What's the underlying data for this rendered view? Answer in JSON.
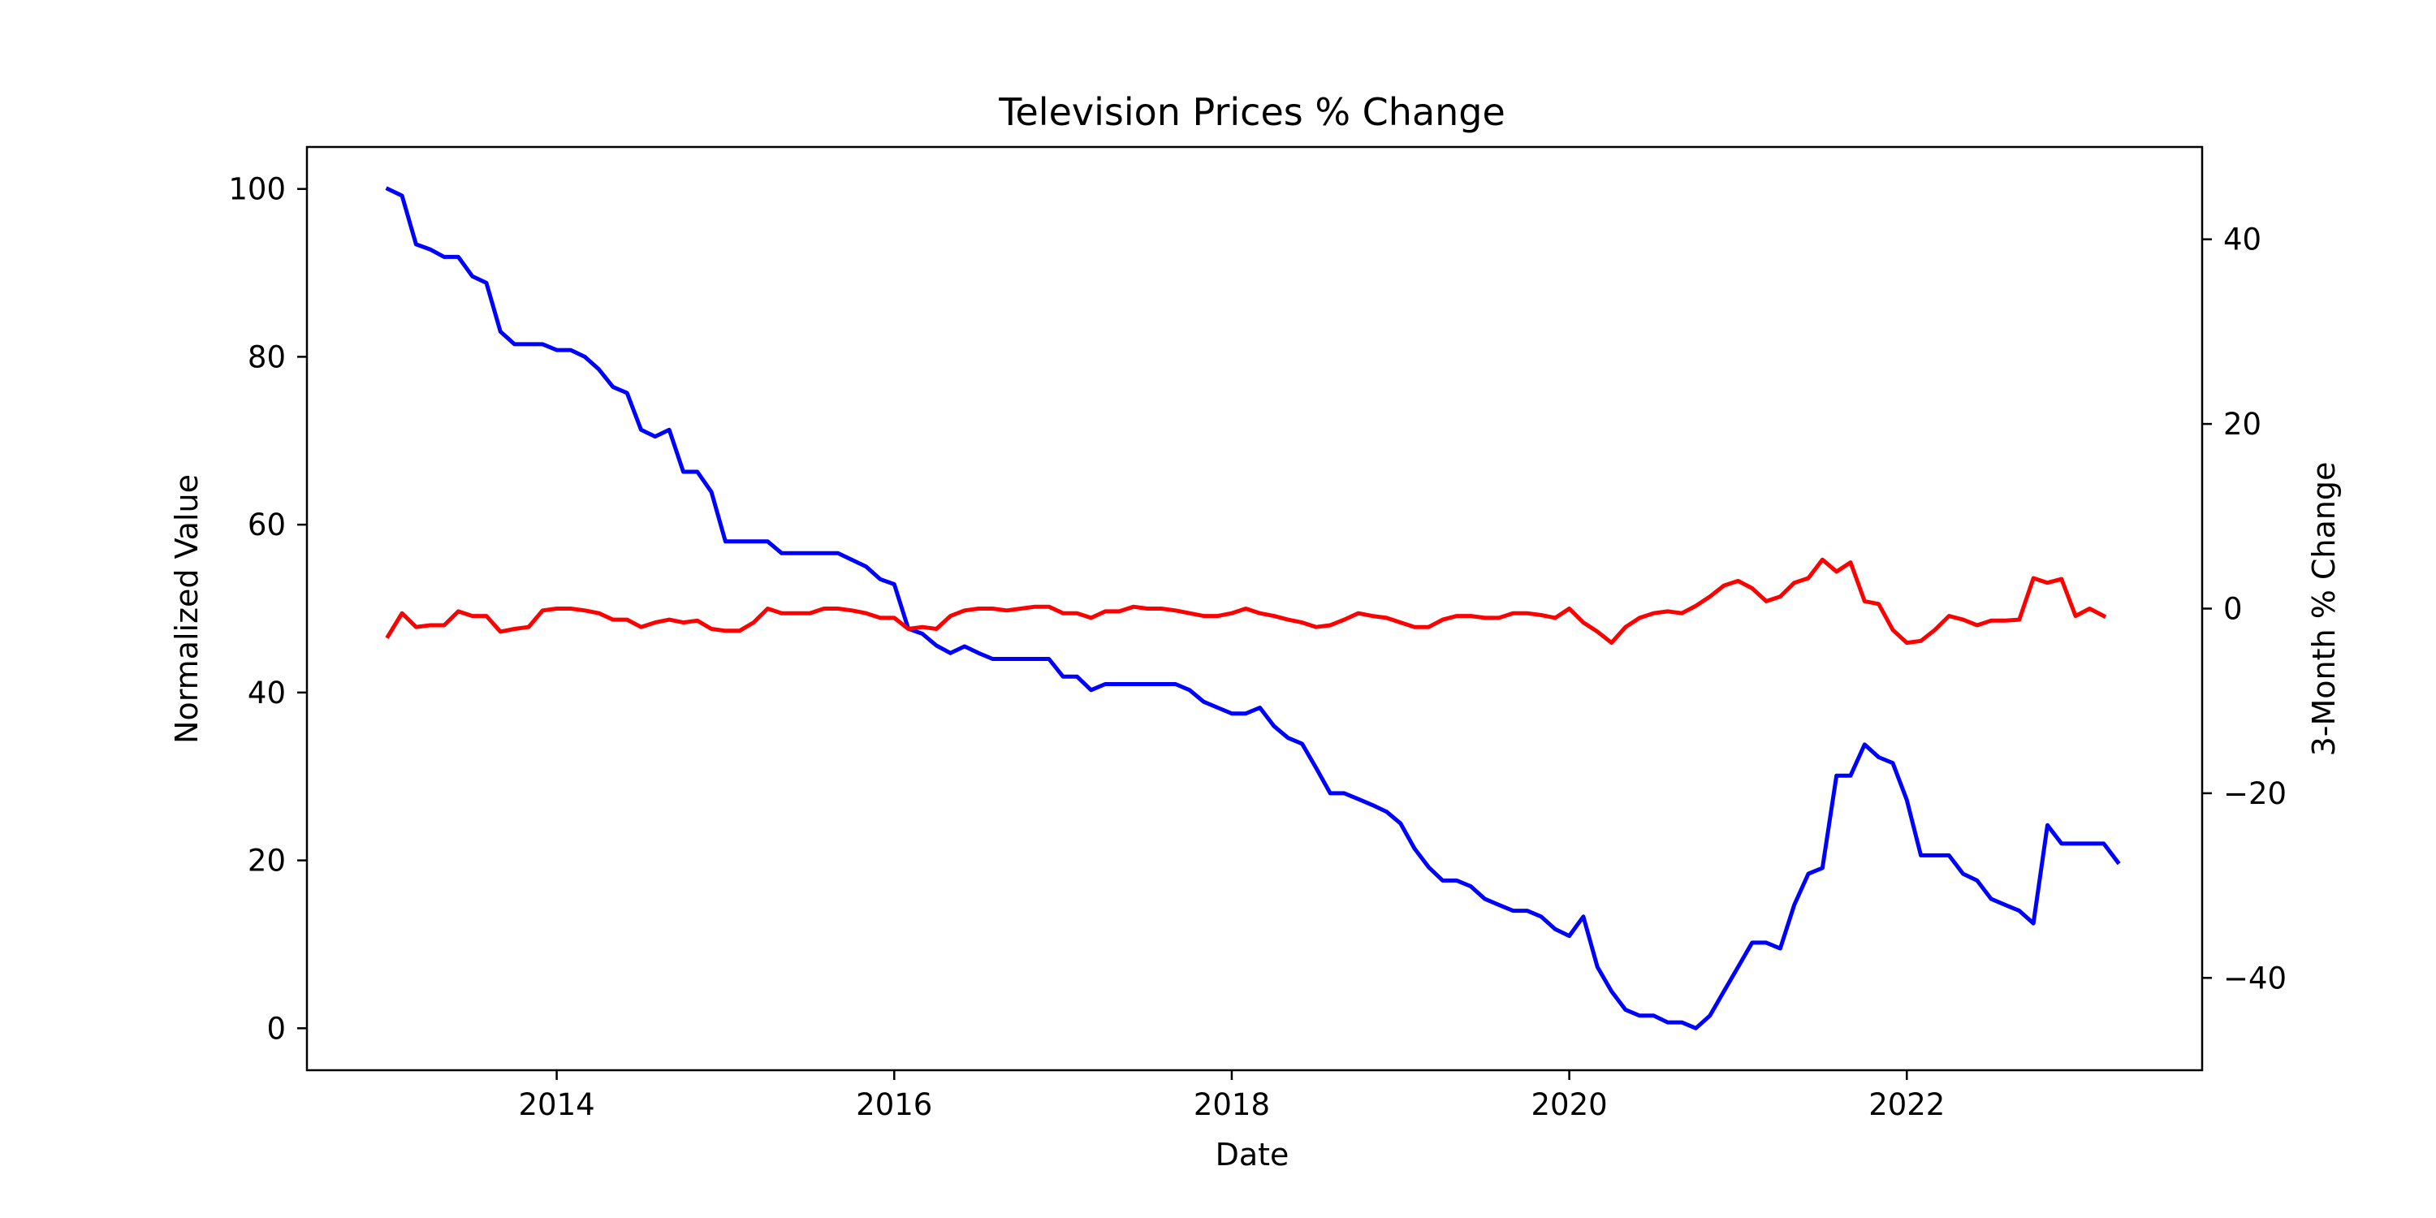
{
  "chart_data": {
    "type": "line",
    "title": "Television Prices % Change",
    "xlabel": "Date",
    "ylabel": "Normalized Value",
    "y2label": "3-Month % Change",
    "xlim": [
      2012.52,
      2023.75
    ],
    "ylim": [
      -5,
      105
    ],
    "y2lim": [
      -50,
      50
    ],
    "x_ticks": [
      2014,
      2016,
      2018,
      2020,
      2022
    ],
    "y_ticks": [
      0,
      20,
      40,
      60,
      80,
      100
    ],
    "y2_ticks": [
      -40,
      -20,
      0,
      20,
      40
    ],
    "y2_tick_labels": [
      "−40",
      "−20",
      "0",
      "20",
      "40"
    ],
    "grid": false,
    "legend": "none",
    "x_start_date": "2013-01",
    "x_step": "1 month",
    "series": [
      {
        "axis": "left",
        "color": "#0000ff",
        "values": [
          100.0,
          99.2,
          93.4,
          92.8,
          91.9,
          91.9,
          89.6,
          88.8,
          83.0,
          81.5,
          81.5,
          81.5,
          80.8,
          80.8,
          80.0,
          78.5,
          76.4,
          75.7,
          71.3,
          70.5,
          71.3,
          66.3,
          66.3,
          63.9,
          58.0,
          58.0,
          58.0,
          58.0,
          56.6,
          56.6,
          56.6,
          56.6,
          56.6,
          55.8,
          55.0,
          53.5,
          52.9,
          47.6,
          47.0,
          45.6,
          44.7,
          45.5,
          44.7,
          44.0,
          44.0,
          44.0,
          44.0,
          44.0,
          41.9,
          41.9,
          40.3,
          41.0,
          41.0,
          41.0,
          41.0,
          41.0,
          41.0,
          40.3,
          38.9,
          38.2,
          37.5,
          37.5,
          38.2,
          36.0,
          34.6,
          33.9,
          31.0,
          28.0,
          28.0,
          27.3,
          26.6,
          25.8,
          24.4,
          21.4,
          19.2,
          17.6,
          17.6,
          16.9,
          15.4,
          14.7,
          14.0,
          14.0,
          13.3,
          11.8,
          11.0,
          13.3,
          7.3,
          4.4,
          2.2,
          1.5,
          1.5,
          0.7,
          0.7,
          0.0,
          1.5,
          4.4,
          7.3,
          10.2,
          10.2,
          9.5,
          14.7,
          18.4,
          19.1,
          30.1,
          30.1,
          33.8,
          32.3,
          31.6,
          27.2,
          20.6,
          20.6,
          20.6,
          18.4,
          17.6,
          15.4,
          14.7,
          14.0,
          12.5,
          24.2,
          22.0,
          22.0,
          22.0,
          22.0,
          19.8
        ]
      },
      {
        "axis": "right",
        "color": "#ff0000",
        "values": [
          -3.0,
          -0.5,
          -2.0,
          -1.8,
          -1.8,
          -0.3,
          -0.8,
          -0.8,
          -2.5,
          -2.2,
          -2.0,
          -0.2,
          0.0,
          0.0,
          -0.2,
          -0.5,
          -1.2,
          -1.2,
          -2.0,
          -1.5,
          -1.2,
          -1.5,
          -1.3,
          -2.2,
          -2.4,
          -2.4,
          -1.5,
          0.0,
          -0.5,
          -0.5,
          -0.5,
          0.0,
          0.0,
          -0.2,
          -0.5,
          -1.0,
          -1.0,
          -2.2,
          -2.0,
          -2.2,
          -0.8,
          -0.2,
          0.0,
          0.0,
          -0.2,
          0.0,
          0.2,
          0.2,
          -0.5,
          -0.5,
          -1.0,
          -0.3,
          -0.3,
          0.2,
          0.0,
          0.0,
          -0.2,
          -0.5,
          -0.8,
          -0.8,
          -0.5,
          0.0,
          -0.5,
          -0.8,
          -1.2,
          -1.5,
          -2.0,
          -1.8,
          -1.2,
          -0.5,
          -0.8,
          -1.0,
          -1.5,
          -2.0,
          -2.0,
          -1.2,
          -0.8,
          -0.8,
          -1.0,
          -1.0,
          -0.5,
          -0.5,
          -0.7,
          -1.0,
          0.0,
          -1.5,
          -2.5,
          -3.7,
          -2.0,
          -1.0,
          -0.5,
          -0.3,
          -0.5,
          0.3,
          1.3,
          2.5,
          3.0,
          2.2,
          0.8,
          1.3,
          2.8,
          3.3,
          5.3,
          4.0,
          5.0,
          0.8,
          0.5,
          -2.3,
          -3.7,
          -3.5,
          -2.3,
          -0.8,
          -1.2,
          -1.8,
          -1.3,
          -1.3,
          -1.2,
          3.3,
          2.8,
          3.2,
          -0.8,
          0.0,
          -0.8
        ]
      }
    ]
  }
}
